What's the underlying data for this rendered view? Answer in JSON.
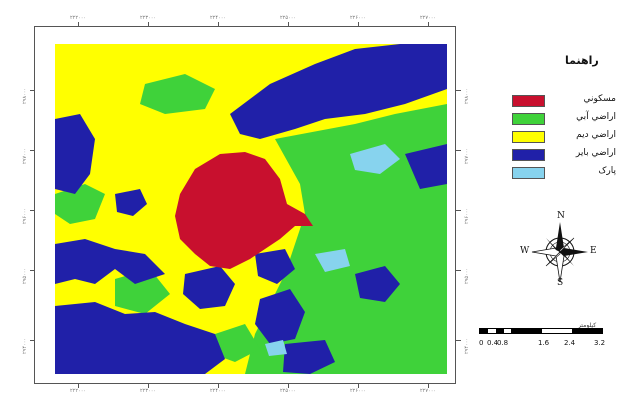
{
  "legend": {
    "title": "راهنما",
    "items": [
      {
        "label": "مسكوني",
        "color": "#c8102e"
      },
      {
        "label": "اراضي آبي",
        "color": "#3fd23a"
      },
      {
        "label": "اراضي ديم",
        "color": "#ffff00"
      },
      {
        "label": "اراضي باير",
        "color": "#2020a8"
      },
      {
        "label": "پارک",
        "color": "#87d3ee"
      }
    ]
  },
  "compass": {
    "n": "N",
    "s": "S",
    "e": "E",
    "w": "W"
  },
  "scale": {
    "unit_label": "كيلومتر",
    "labels": [
      "0",
      "0.4",
      "0.8",
      "1.6",
      "2.4",
      "3.2"
    ]
  },
  "graticule": {
    "x_ticks": [
      "۲۲۲۰۰۰",
      "۲۲۳۰۰۰",
      "۲۲۴۰۰۰",
      "۲۲۵۰۰۰",
      "۲۲۶۰۰۰",
      "۲۲۷۰۰۰"
    ],
    "y_ticks": [
      "۲۹۸۰۰۰",
      "۲۹۷۰۰۰",
      "۲۹۶۰۰۰",
      "۲۹۵۰۰۰",
      "۲۹۴۰۰۰"
    ]
  }
}
